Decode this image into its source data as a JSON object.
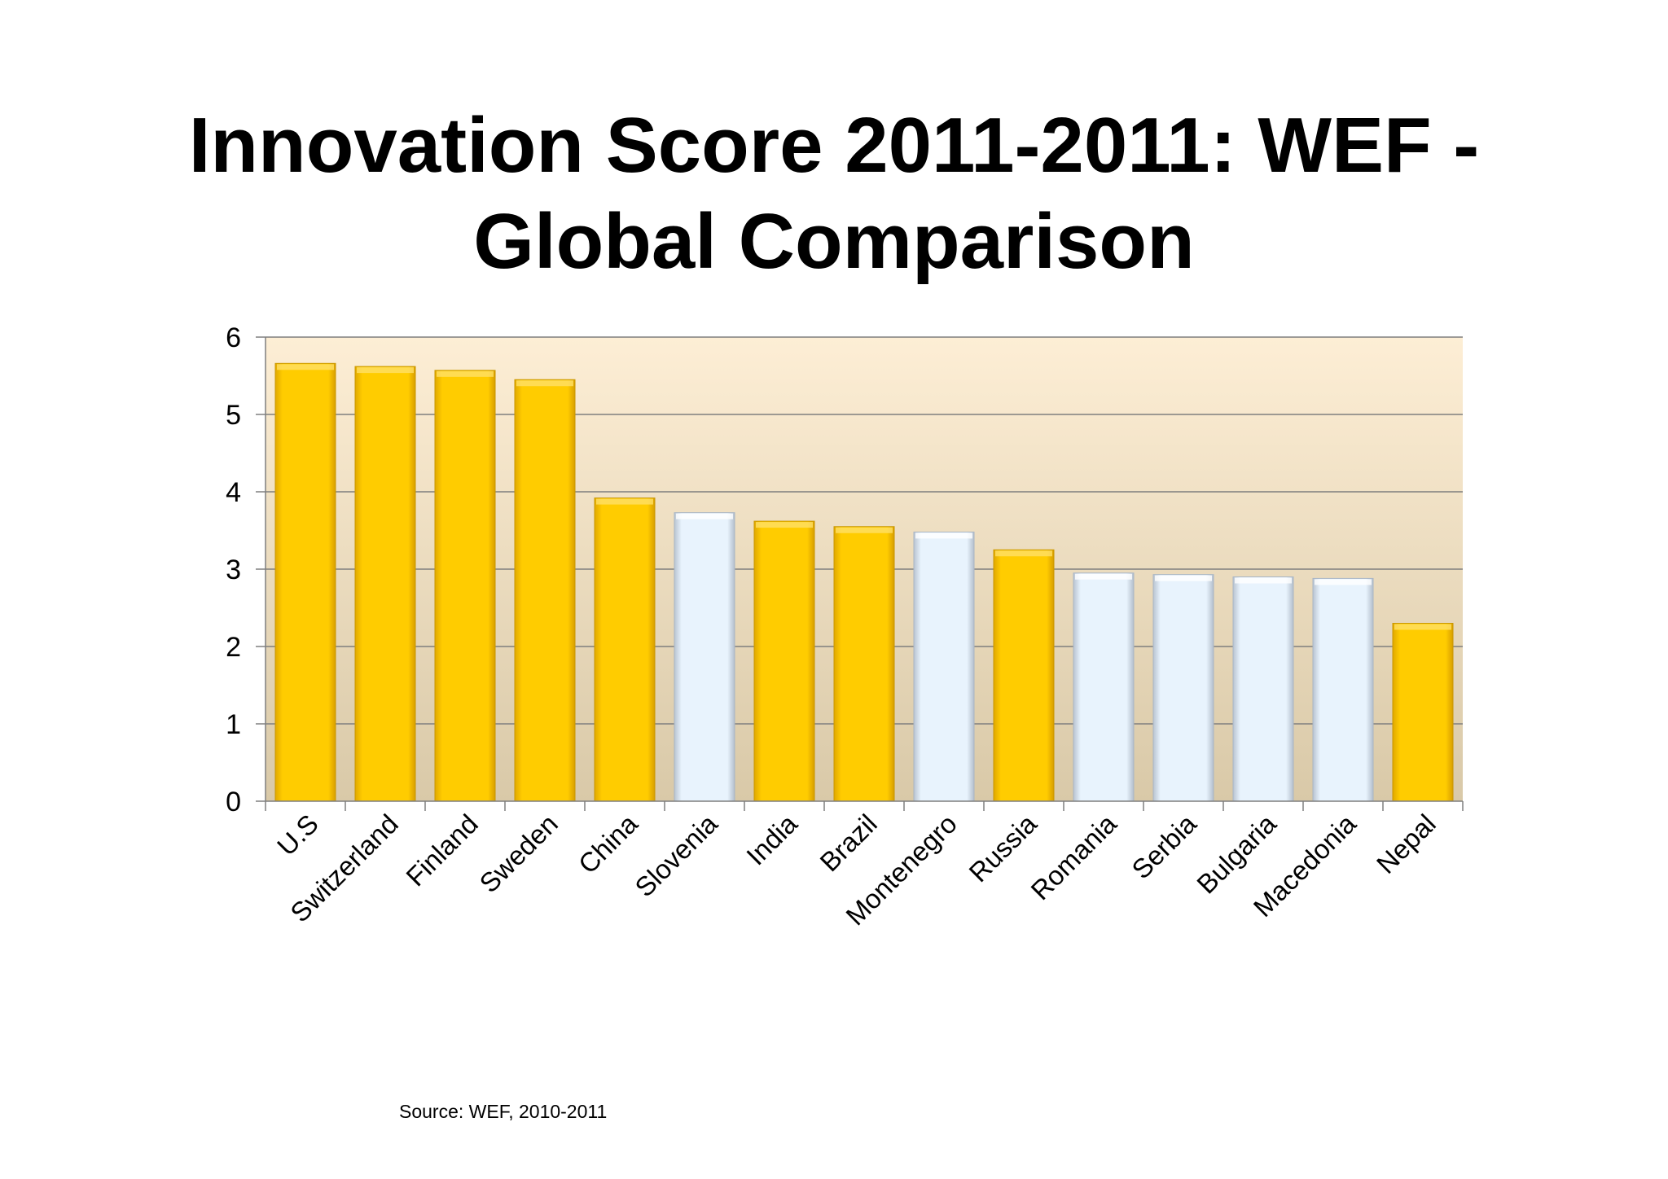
{
  "title": {
    "line1": "Innovation Score 2011-2011: WEF -",
    "line2": "Global Comparison"
  },
  "source": "Source: WEF, 2010-2011",
  "colors": {
    "highlight_bar": "#FFCC00",
    "other_bar": "#E8F3FD",
    "plot_bg_top": "#FDEED5",
    "plot_bg_bottom": "#D9C9A8",
    "gridline": "#7F7F7F"
  },
  "chart_data": {
    "type": "bar",
    "title": "Innovation Score 2011-2011: WEF - Global Comparison",
    "xlabel": "",
    "ylabel": "",
    "ylim": [
      0,
      6
    ],
    "yticks": [
      0,
      1,
      2,
      3,
      4,
      5,
      6
    ],
    "grid": true,
    "categories": [
      "U.S",
      "Switzerland",
      "Finland",
      "Sweden",
      "China",
      "Slovenia",
      "India",
      "Brazil",
      "Montenegro",
      "Russia",
      "Romania",
      "Serbia",
      "Bulgaria",
      "Macedonia",
      "Nepal"
    ],
    "values": [
      5.66,
      5.62,
      5.57,
      5.45,
      3.92,
      3.73,
      3.62,
      3.55,
      3.48,
      3.25,
      2.95,
      2.93,
      2.9,
      2.88,
      2.3
    ],
    "bar_groups": [
      "highlight",
      "highlight",
      "highlight",
      "highlight",
      "highlight",
      "other",
      "highlight",
      "highlight",
      "other",
      "highlight",
      "other",
      "other",
      "other",
      "other",
      "highlight"
    ]
  }
}
